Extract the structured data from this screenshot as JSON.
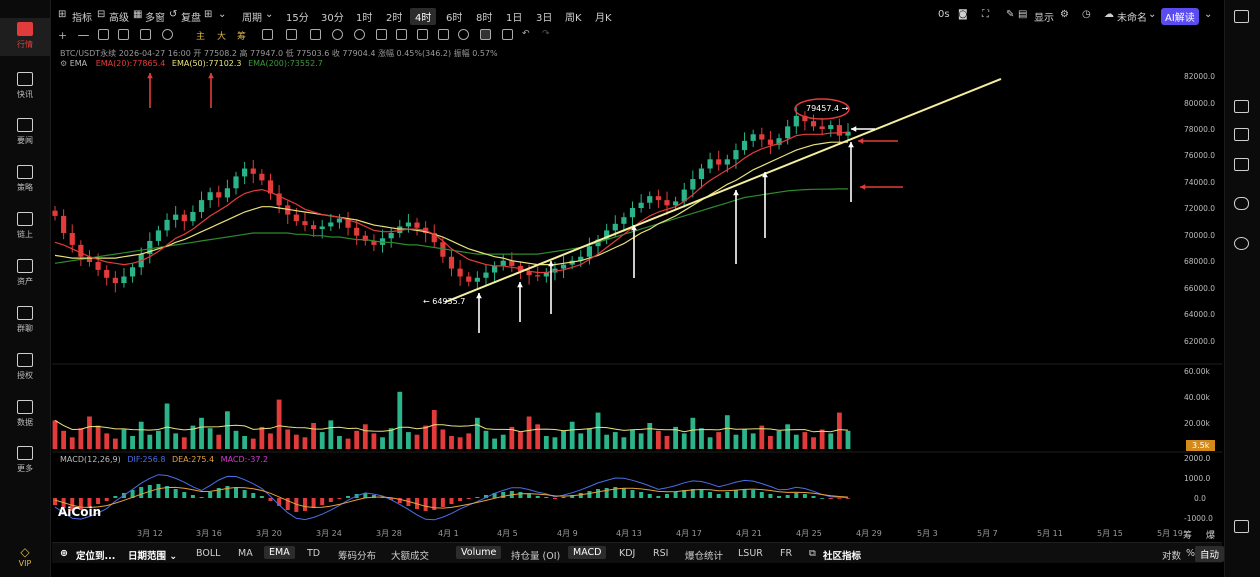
{
  "sidebar": {
    "items": [
      {
        "label": "行情",
        "icon": "market-icon",
        "active": true
      },
      {
        "label": "快讯",
        "icon": "news-flash-icon"
      },
      {
        "label": "要闻",
        "icon": "headline-icon"
      },
      {
        "label": "策略",
        "icon": "strategy-icon"
      },
      {
        "label": "链上",
        "icon": "chain-icon"
      },
      {
        "label": "资产",
        "icon": "wallet-icon"
      },
      {
        "label": "群聊",
        "icon": "chat-icon"
      },
      {
        "label": "授权",
        "icon": "auth-icon"
      },
      {
        "label": "数据",
        "icon": "data-icon"
      },
      {
        "label": "更多",
        "icon": "more-icon"
      }
    ],
    "vip": "VIP"
  },
  "toolbar": {
    "indicators": "指标",
    "advanced": "高级",
    "multi_window": "多窗",
    "restore": "复盘",
    "period": "周期",
    "intervals": [
      "15分",
      "30分",
      "1时",
      "2时",
      "4时",
      "6时",
      "8时",
      "1日",
      "3日",
      "周K",
      "月K"
    ],
    "active_interval": "4时",
    "timer": "0s",
    "display": "显示",
    "layout_name": "未命名",
    "ai_button": "AI解读"
  },
  "drawing_toolbar": {
    "main": "主",
    "large": "大",
    "chips": "筹"
  },
  "info": {
    "pair_line": "BTC/USDT永续  2026-04-27 16:00  开 77508.2  高 77947.0  低 77503.6  收 77904.4  涨幅 0.45%(346.2)  振幅 0.57%",
    "ema_label": "EMA",
    "ema20": "EMA(20):77865.4",
    "ema50": "EMA(50):77102.3",
    "ema200": "EMA(200):73552.7",
    "macd_label": "MACD(12,26,9)",
    "dif": "DIF:256.8",
    "dea": "DEA:275.4",
    "macd": "MACD:-37.2",
    "high_marker": "79457.4 →",
    "low_marker": "← 64935.7",
    "volume_badge": "3.5k",
    "watermark": "AiCoin"
  },
  "axes": {
    "price_ticks": [
      "82000.0",
      "80000.0",
      "78000.0",
      "76000.0",
      "74000.0",
      "72000.0",
      "70000.0",
      "68000.0",
      "66000.0",
      "64000.0",
      "62000.0"
    ],
    "volume_ticks": [
      "60.00k",
      "40.00k",
      "20.00k"
    ],
    "macd_ticks": [
      "2000.0",
      "1000.0",
      "0.0",
      "-1000.0"
    ],
    "dates": [
      "3月 12",
      "3月 16",
      "3月 20",
      "3月 24",
      "3月 28",
      "4月 1",
      "4月 5",
      "4月 9",
      "4月 13",
      "4月 17",
      "4月 21",
      "4月 25",
      "4月 29",
      "5月 3",
      "5月 7",
      "5月 11",
      "5月 15",
      "5月 19"
    ],
    "right_labels": [
      "筹",
      "爆"
    ]
  },
  "chart_data": {
    "type": "candlestick",
    "pair": "BTC/USDT永续",
    "interval": "4时",
    "ylim": [
      61000,
      83000
    ],
    "close": [
      71500,
      70200,
      69300,
      68400,
      68000,
      67400,
      66800,
      66400,
      66900,
      67600,
      68600,
      69600,
      70400,
      71200,
      71600,
      71100,
      71800,
      72700,
      73300,
      72900,
      73600,
      74500,
      75100,
      74700,
      74200,
      73200,
      72300,
      71600,
      71100,
      70800,
      70500,
      70700,
      71000,
      71300,
      70600,
      70000,
      69600,
      69300,
      69800,
      70200,
      70700,
      71000,
      70600,
      70200,
      69500,
      68400,
      67500,
      66900,
      66500,
      66800,
      67200,
      67700,
      68100,
      67700,
      67300,
      67000,
      66900,
      67200,
      67500,
      67800,
      68100,
      68400,
      69200,
      69700,
      70400,
      70900,
      71400,
      72100,
      72500,
      73000,
      72700,
      72300,
      72600,
      73500,
      74300,
      75100,
      75800,
      75400,
      75800,
      76500,
      77200,
      77700,
      77300,
      76900,
      77400,
      78300,
      79100,
      78700,
      78300,
      78100,
      78400,
      77600,
      77900
    ],
    "ema20": [
      69500,
      69300,
      69000,
      68700,
      68400,
      68200,
      68000,
      67900,
      67800,
      67900,
      68100,
      68400,
      68800,
      69300,
      69800,
      70100,
      70500,
      71000,
      71500,
      71900,
      72300,
      72800,
      73200,
      73400,
      73500,
      73300,
      73000,
      72700,
      72400,
      72000,
      71800,
      71600,
      71500,
      71400,
      71200,
      71000,
      70700,
      70400,
      70300,
      70300,
      70400,
      70500,
      70500,
      70400,
      70100,
      69600,
      69000,
      68600,
      68200,
      68000,
      67800,
      67700,
      67700,
      67600,
      67500,
      67300,
      67200,
      67200,
      67300,
      67400,
      67600,
      67800,
      68200,
      68600,
      69100,
      69600,
      70100,
      70600,
      71100,
      71500,
      71800,
      72000,
      72200,
      72600,
      73100,
      73700,
      74200,
      74600,
      75000,
      75400,
      75900,
      76300,
      76600,
      76800,
      77000,
      77300,
      77600,
      77700,
      77700,
      77700,
      77800,
      77800,
      77865.4
    ],
    "ema50": [
      68500,
      68400,
      68300,
      68300,
      68300,
      68300,
      68300,
      68300,
      68400,
      68500,
      68600,
      68800,
      69000,
      69200,
      69500,
      69700,
      70000,
      70300,
      70600,
      70900,
      71200,
      71500,
      71800,
      72000,
      72200,
      72200,
      72100,
      72000,
      71900,
      71800,
      71700,
      71600,
      71500,
      71400,
      71300,
      71200,
      71000,
      70800,
      70700,
      70600,
      70500,
      70500,
      70400,
      70300,
      70100,
      69900,
      69600,
      69300,
      69000,
      68800,
      68600,
      68400,
      68300,
      68100,
      68000,
      67900,
      67800,
      67800,
      67800,
      67900,
      68000,
      68100,
      68300,
      68500,
      68800,
      69100,
      69400,
      69800,
      70200,
      70500,
      70900,
      71200,
      71500,
      71900,
      72300,
      72700,
      73100,
      73500,
      73900,
      74200,
      74600,
      75000,
      75300,
      75600,
      75900,
      76200,
      76500,
      76700,
      76900,
      77000,
      77100,
      77100,
      77102.3
    ],
    "ema200": [
      67900,
      68000,
      68100,
      68200,
      68300,
      68400,
      68500,
      68600,
      68700,
      68800,
      68900,
      69000,
      69100,
      69200,
      69300,
      69400,
      69500,
      69600,
      69700,
      69800,
      69900,
      70000,
      70100,
      70200,
      70200,
      70200,
      70200,
      70200,
      70100,
      70100,
      70000,
      70000,
      69900,
      69900,
      69800,
      69700,
      69700,
      69600,
      69500,
      69500,
      69400,
      69300,
      69300,
      69200,
      69100,
      69000,
      68900,
      68800,
      68700,
      68600,
      68600,
      68600,
      68600,
      68600,
      68600,
      68600,
      68600,
      68700,
      68800,
      68900,
      69000,
      69100,
      69300,
      69500,
      69700,
      69900,
      70100,
      70300,
      70500,
      70700,
      70900,
      71100,
      71300,
      71500,
      71700,
      71900,
      72100,
      72300,
      72500,
      72700,
      72900,
      73000,
      73100,
      73200,
      73300,
      73400,
      73450,
      73500,
      73520,
      73530,
      73540,
      73550,
      73552.7
    ],
    "volume_k": [
      22,
      14,
      9,
      16,
      25,
      18,
      12,
      8,
      15,
      10,
      21,
      11,
      14,
      35,
      12,
      9,
      18,
      24,
      16,
      11,
      29,
      14,
      10,
      8,
      17,
      12,
      38,
      15,
      11,
      9,
      20,
      13,
      22,
      10,
      8,
      14,
      19,
      12,
      9,
      16,
      44,
      13,
      11,
      18,
      30,
      15,
      10,
      9,
      12,
      24,
      14,
      8,
      11,
      17,
      13,
      25,
      19,
      10,
      9,
      14,
      21,
      12,
      16,
      28,
      11,
      13,
      9,
      15,
      12,
      20,
      14,
      10,
      17,
      12,
      24,
      16,
      9,
      13,
      26,
      11,
      15,
      12,
      18,
      10,
      14,
      19,
      11,
      13,
      9,
      15,
      12,
      28,
      14
    ],
    "macd_hist": [
      -350,
      -500,
      -650,
      -600,
      -450,
      -300,
      -150,
      100,
      250,
      400,
      550,
      650,
      700,
      600,
      450,
      300,
      150,
      50,
      300,
      500,
      600,
      550,
      400,
      250,
      100,
      -150,
      -400,
      -600,
      -700,
      -650,
      -500,
      -350,
      -200,
      -50,
      100,
      200,
      250,
      150,
      50,
      -100,
      -250,
      -400,
      -550,
      -650,
      -600,
      -450,
      -300,
      -150,
      -50,
      50,
      150,
      250,
      300,
      350,
      300,
      200,
      100,
      50,
      -50,
      50,
      150,
      250,
      350,
      450,
      500,
      550,
      500,
      400,
      300,
      200,
      100,
      200,
      300,
      400,
      450,
      400,
      300,
      200,
      300,
      400,
      450,
      400,
      300,
      200,
      100,
      150,
      250,
      200,
      100,
      0,
      -50,
      -40,
      -37.2
    ]
  }
}
